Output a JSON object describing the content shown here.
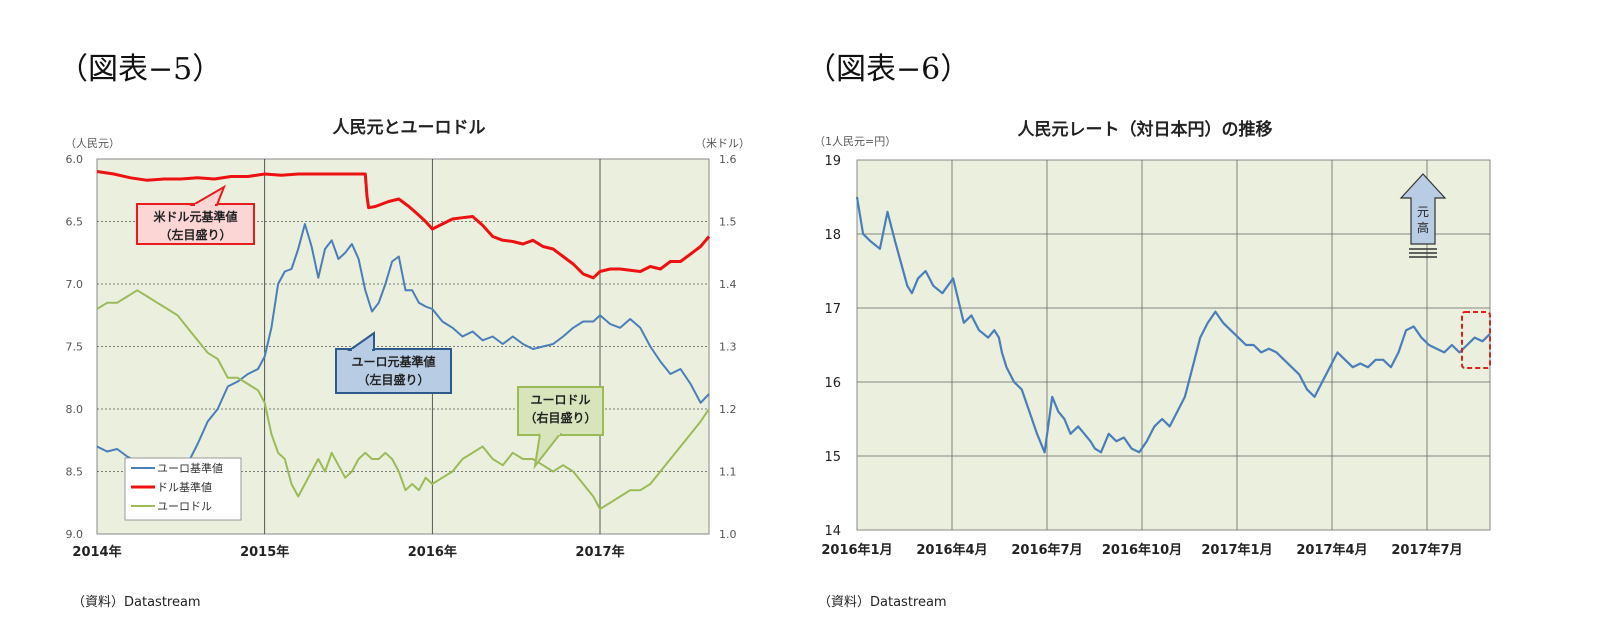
{
  "page": {
    "fig5_label": "（図表−5）",
    "fig6_label": "（図表−6）"
  },
  "chart_data": [
    {
      "type": "line",
      "title": "人民元とユーロドル",
      "y_left_unit": "（人民元）",
      "y_right_unit": "（米ドル）",
      "y_left_ticks": [
        "6.0",
        "6.5",
        "7.0",
        "7.5",
        "8.0",
        "8.5",
        "9.0"
      ],
      "y_right_ticks": [
        "1.6",
        "1.5",
        "1.4",
        "1.3",
        "1.2",
        "1.1",
        "1.0"
      ],
      "ylim_left": [
        9.0,
        6.0
      ],
      "ylim_right": [
        1.0,
        1.6
      ],
      "y_left_inverted": true,
      "x_ticks": [
        "2014年",
        "2015年",
        "2016年",
        "2017年"
      ],
      "xlim": [
        2014.0,
        2017.65
      ],
      "grid": true,
      "source": "（資料）Datastream",
      "legend_position": "bottom-left",
      "series": [
        {
          "name": "ユーロ基準値",
          "axis": "left",
          "color": "#4a7ebb",
          "x": [
            2014.0,
            2014.06,
            2014.12,
            2014.18,
            2014.24,
            2014.3,
            2014.36,
            2014.42,
            2014.48,
            2014.54,
            2014.6,
            2014.66,
            2014.72,
            2014.78,
            2014.84,
            2014.9,
            2014.96,
            2015.0,
            2015.04,
            2015.08,
            2015.12,
            2015.16,
            2015.2,
            2015.24,
            2015.28,
            2015.32,
            2015.36,
            2015.4,
            2015.44,
            2015.48,
            2015.52,
            2015.56,
            2015.6,
            2015.64,
            2015.68,
            2015.72,
            2015.76,
            2015.8,
            2015.84,
            2015.88,
            2015.92,
            2015.96,
            2016.0,
            2016.06,
            2016.12,
            2016.18,
            2016.24,
            2016.3,
            2016.36,
            2016.42,
            2016.48,
            2016.54,
            2016.6,
            2016.66,
            2016.72,
            2016.78,
            2016.84,
            2016.9,
            2016.96,
            2017.0,
            2017.06,
            2017.12,
            2017.18,
            2017.24,
            2017.3,
            2017.36,
            2017.42,
            2017.48,
            2017.54,
            2017.6,
            2017.65
          ],
          "values": [
            8.3,
            8.34,
            8.32,
            8.38,
            8.42,
            8.4,
            8.43,
            8.42,
            8.46,
            8.44,
            8.28,
            8.1,
            8.0,
            7.82,
            7.78,
            7.72,
            7.68,
            7.58,
            7.35,
            7.0,
            6.9,
            6.88,
            6.72,
            6.52,
            6.7,
            6.95,
            6.72,
            6.65,
            6.8,
            6.75,
            6.68,
            6.8,
            7.05,
            7.22,
            7.15,
            7.0,
            6.82,
            6.78,
            7.05,
            7.05,
            7.15,
            7.18,
            7.2,
            7.3,
            7.35,
            7.42,
            7.38,
            7.45,
            7.42,
            7.48,
            7.42,
            7.48,
            7.52,
            7.5,
            7.48,
            7.42,
            7.35,
            7.3,
            7.3,
            7.25,
            7.32,
            7.35,
            7.28,
            7.35,
            7.5,
            7.62,
            7.72,
            7.68,
            7.8,
            7.95,
            7.88
          ]
        },
        {
          "name": "ドル基準値",
          "axis": "left",
          "color": "#ee1111",
          "x": [
            2014.0,
            2014.1,
            2014.2,
            2014.3,
            2014.4,
            2014.5,
            2014.6,
            2014.7,
            2014.8,
            2014.9,
            2015.0,
            2015.1,
            2015.2,
            2015.3,
            2015.4,
            2015.5,
            2015.6,
            2015.61,
            2015.62,
            2015.66,
            2015.7,
            2015.74,
            2015.8,
            2015.86,
            2015.92,
            2015.96,
            2016.0,
            2016.06,
            2016.12,
            2016.18,
            2016.24,
            2016.3,
            2016.36,
            2016.42,
            2016.48,
            2016.54,
            2016.6,
            2016.66,
            2016.72,
            2016.78,
            2016.84,
            2016.9,
            2016.96,
            2017.0,
            2017.06,
            2017.12,
            2017.18,
            2017.24,
            2017.3,
            2017.36,
            2017.42,
            2017.48,
            2017.54,
            2017.6,
            2017.65
          ],
          "values": [
            6.1,
            6.12,
            6.15,
            6.17,
            6.16,
            6.16,
            6.15,
            6.16,
            6.14,
            6.14,
            6.12,
            6.13,
            6.12,
            6.12,
            6.12,
            6.12,
            6.12,
            6.3,
            6.39,
            6.38,
            6.36,
            6.34,
            6.32,
            6.38,
            6.45,
            6.5,
            6.56,
            6.52,
            6.48,
            6.47,
            6.46,
            6.53,
            6.62,
            6.65,
            6.66,
            6.68,
            6.65,
            6.7,
            6.72,
            6.78,
            6.84,
            6.92,
            6.95,
            6.9,
            6.88,
            6.88,
            6.89,
            6.9,
            6.86,
            6.88,
            6.82,
            6.82,
            6.76,
            6.7,
            6.62
          ]
        },
        {
          "name": "ユーロドル",
          "axis": "right",
          "color": "#9bbb59",
          "x": [
            2014.0,
            2014.06,
            2014.12,
            2014.18,
            2014.24,
            2014.3,
            2014.36,
            2014.42,
            2014.48,
            2014.54,
            2014.6,
            2014.66,
            2014.72,
            2014.78,
            2014.84,
            2014.9,
            2014.96,
            2015.0,
            2015.04,
            2015.08,
            2015.12,
            2015.16,
            2015.2,
            2015.24,
            2015.28,
            2015.32,
            2015.36,
            2015.4,
            2015.44,
            2015.48,
            2015.52,
            2015.56,
            2015.6,
            2015.64,
            2015.68,
            2015.72,
            2015.76,
            2015.8,
            2015.84,
            2015.88,
            2015.92,
            2015.96,
            2016.0,
            2016.06,
            2016.12,
            2016.18,
            2016.24,
            2016.3,
            2016.36,
            2016.42,
            2016.48,
            2016.54,
            2016.6,
            2016.66,
            2016.72,
            2016.78,
            2016.84,
            2016.9,
            2016.96,
            2017.0,
            2017.06,
            2017.12,
            2017.18,
            2017.24,
            2017.3,
            2017.36,
            2017.42,
            2017.48,
            2017.54,
            2017.6,
            2017.65
          ],
          "values": [
            1.36,
            1.37,
            1.37,
            1.38,
            1.39,
            1.38,
            1.37,
            1.36,
            1.35,
            1.33,
            1.31,
            1.29,
            1.28,
            1.25,
            1.25,
            1.24,
            1.23,
            1.21,
            1.16,
            1.13,
            1.12,
            1.08,
            1.06,
            1.08,
            1.1,
            1.12,
            1.1,
            1.13,
            1.11,
            1.09,
            1.1,
            1.12,
            1.13,
            1.12,
            1.12,
            1.13,
            1.12,
            1.1,
            1.07,
            1.08,
            1.07,
            1.09,
            1.08,
            1.09,
            1.1,
            1.12,
            1.13,
            1.14,
            1.12,
            1.11,
            1.13,
            1.12,
            1.12,
            1.11,
            1.1,
            1.11,
            1.1,
            1.08,
            1.06,
            1.04,
            1.05,
            1.06,
            1.07,
            1.07,
            1.08,
            1.1,
            1.12,
            1.14,
            1.16,
            1.18,
            1.2
          ]
        }
      ],
      "callouts": [
        {
          "series": "ドル基準値",
          "lines": [
            "米ドル元基準値",
            "（左目盛り）"
          ],
          "bg": "#fcd5d5",
          "border": "#e81c1c"
        },
        {
          "series": "ユーロ基準値",
          "lines": [
            "ユーロ元基準値",
            "（左目盛り）"
          ],
          "bg": "#b8cce4",
          "border": "#2e5a8a"
        },
        {
          "series": "ユーロドル",
          "lines": [
            "ユーロドル",
            "（右目盛り）"
          ],
          "bg": "#d7e4bc",
          "border": "#9bbb59"
        }
      ]
    },
    {
      "type": "line",
      "title": "人民元レート（対日本円）の推移",
      "ylabel": "（1人民元=円）",
      "y_ticks": [
        "19",
        "18",
        "17",
        "16",
        "15",
        "14"
      ],
      "ylim": [
        14,
        19
      ],
      "x_ticks": [
        "2016年1月",
        "2016年4月",
        "2016年7月",
        "2016年10月",
        "2017年1月",
        "2017年4月",
        "2017年7月"
      ],
      "xlim": [
        0,
        8.3
      ],
      "grid": true,
      "source": "（資料）Datastream",
      "arrow_label": "元高",
      "series": [
        {
          "name": "",
          "color": "#4a7ebb",
          "x": [
            0.0,
            0.08,
            0.18,
            0.3,
            0.4,
            0.5,
            0.58,
            0.66,
            0.72,
            0.8,
            0.9,
            1.0,
            1.12,
            1.26,
            1.4,
            1.5,
            1.6,
            1.72,
            1.8,
            1.86,
            1.9,
            1.96,
            2.06,
            2.16,
            2.26,
            2.36,
            2.46,
            2.56,
            2.64,
            2.72,
            2.8,
            2.9,
            2.98,
            3.06,
            3.12,
            3.2,
            3.3,
            3.4,
            3.5,
            3.6,
            3.7,
            3.8,
            3.9,
            4.0,
            4.1,
            4.2,
            4.3,
            4.4,
            4.5,
            4.6,
            4.7,
            4.8,
            4.9,
            5.0,
            5.1,
            5.2,
            5.3,
            5.4,
            5.5,
            5.6,
            5.7,
            5.8,
            5.9,
            6.0,
            6.1,
            6.2,
            6.3,
            6.4,
            6.5,
            6.6,
            6.7,
            6.8,
            6.9,
            7.0,
            7.1,
            7.2,
            7.3,
            7.4,
            7.5,
            7.6,
            7.7,
            7.8,
            7.9,
            8.0,
            8.1,
            8.2,
            8.3
          ],
          "values": [
            18.5,
            18.0,
            17.9,
            17.8,
            18.3,
            17.9,
            17.6,
            17.3,
            17.2,
            17.4,
            17.5,
            17.3,
            17.2,
            17.4,
            16.8,
            16.9,
            16.7,
            16.6,
            16.7,
            16.6,
            16.4,
            16.2,
            16.0,
            15.9,
            15.6,
            15.3,
            15.05,
            15.8,
            15.6,
            15.5,
            15.3,
            15.4,
            15.3,
            15.2,
            15.1,
            15.05,
            15.3,
            15.2,
            15.25,
            15.1,
            15.05,
            15.2,
            15.4,
            15.5,
            15.4,
            15.6,
            15.8,
            16.2,
            16.6,
            16.8,
            16.95,
            16.8,
            16.7,
            16.6,
            16.5,
            16.5,
            16.4,
            16.45,
            16.4,
            16.3,
            16.2,
            16.1,
            15.9,
            15.8,
            16.0,
            16.2,
            16.4,
            16.3,
            16.2,
            16.25,
            16.2,
            16.3,
            16.3,
            16.2,
            16.4,
            16.7,
            16.75,
            16.6,
            16.5,
            16.45,
            16.4,
            16.5,
            16.4,
            16.5,
            16.6,
            16.55,
            16.65
          ]
        }
      ]
    }
  ]
}
